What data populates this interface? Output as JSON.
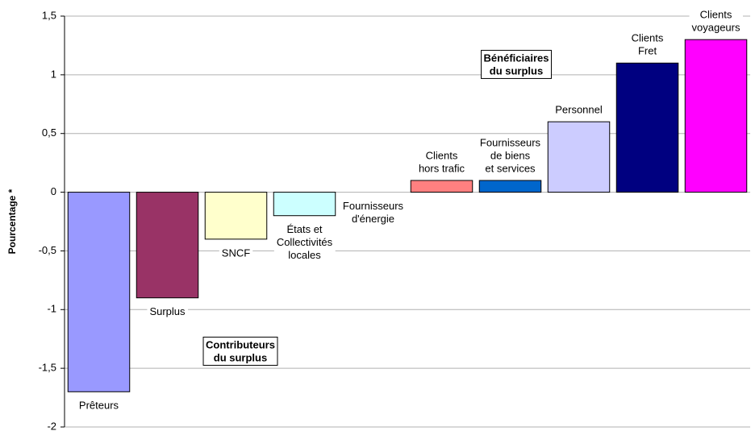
{
  "chart_data": {
    "type": "bar",
    "y_label": "Pourcentage *",
    "categories": [
      [
        "Prêteurs"
      ],
      [
        "Surplus"
      ],
      [
        "SNCF"
      ],
      [
        "États et",
        "Collectivités",
        "locales"
      ],
      [
        "Fournisseurs",
        "d'énergie"
      ],
      [
        "Clients",
        "hors trafic"
      ],
      [
        "Fournisseurs",
        "de biens",
        "et services"
      ],
      [
        "Personnel"
      ],
      [
        "Clients",
        "Fret"
      ],
      [
        "Clients",
        "voyageurs"
      ]
    ],
    "values": [
      -1.7,
      -0.9,
      -0.4,
      -0.2,
      0,
      0.1,
      0.1,
      0.6,
      1.1,
      1.3
    ],
    "colors": [
      "#9999ff",
      "#993366",
      "#ffffcc",
      "#ccffff",
      "#ffffff",
      "#ff8080",
      "#0066cc",
      "#ccccff",
      "#000080",
      "#ff00ff"
    ],
    "ylim": [
      -2,
      1.5
    ],
    "yticks": [
      -2,
      {
        "value": -1.5,
        "label": "-1,5"
      },
      -1,
      {
        "value": -0.5,
        "label": "-0,5"
      },
      0,
      {
        "value": 0.5,
        "label": "0,5"
      },
      1,
      {
        "value": 1.5,
        "label": "1,5"
      }
    ],
    "grid": true,
    "annotations": [
      [
        "Bénéficiaires",
        "du surplus"
      ],
      [
        "Contributeurs",
        "du surplus"
      ]
    ]
  }
}
